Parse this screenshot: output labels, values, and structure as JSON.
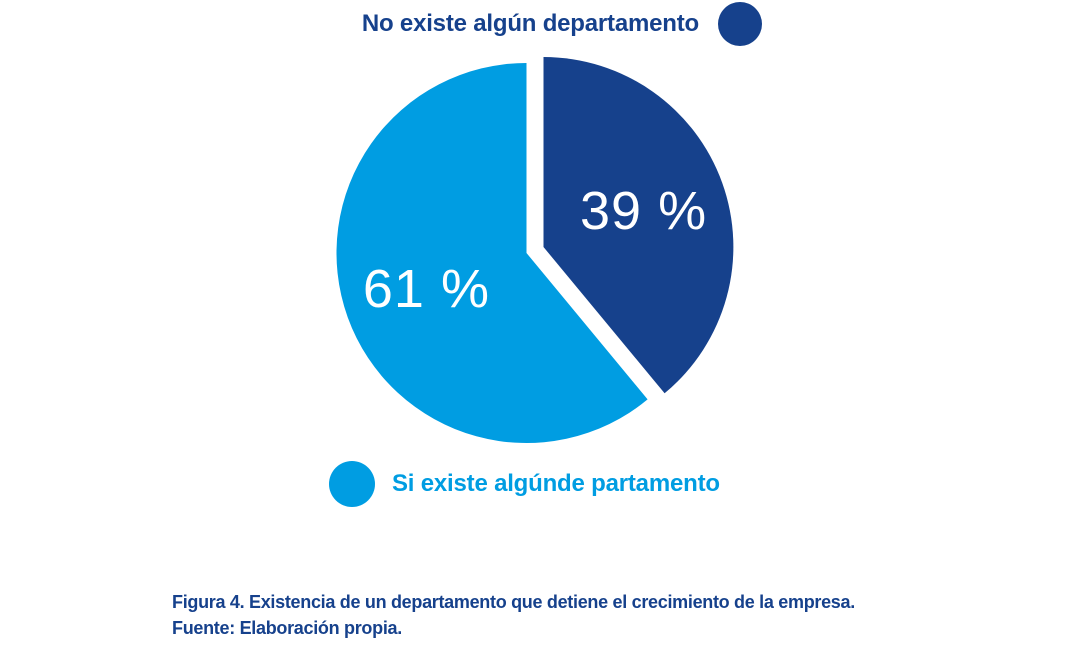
{
  "chart_data": {
    "type": "pie",
    "title": "",
    "slices": [
      {
        "name": "No existe algún departamento",
        "value": 39,
        "label": "39 %",
        "color": "#16418c"
      },
      {
        "name": "Si existe algúnde partamento",
        "value": 61,
        "label": "61 %",
        "color": "#009de2"
      }
    ],
    "start_angle_deg": 0,
    "direction": "clockwise",
    "exploded": true,
    "value_label_color": "#ffffff",
    "legend_position": "top-right and bottom-left"
  },
  "caption": {
    "line1": "Figura 4. Existencia de un departamento que detiene el crecimiento de la empresa.",
    "line2": "Fuente: Elaboración propia.",
    "color": "#16418c"
  },
  "colors": {
    "dark_blue": "#16418c",
    "light_blue": "#009de2",
    "background": "#ffffff"
  }
}
